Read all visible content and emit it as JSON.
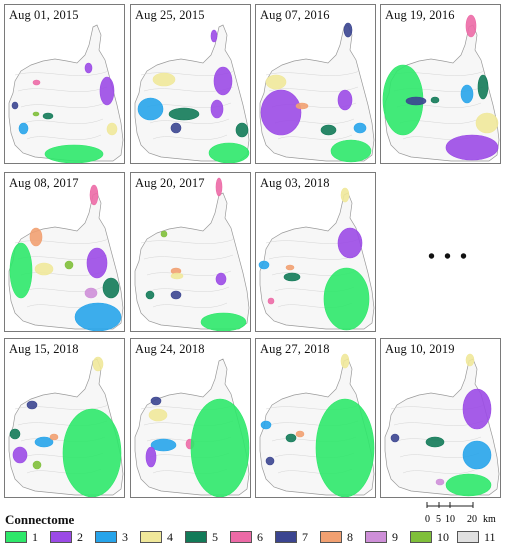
{
  "panels": [
    {
      "date": "Aug 01, 2015",
      "patches": [
        {
          "c": 2,
          "x": 80,
          "y": 58,
          "w": 7,
          "h": 10
        },
        {
          "c": 6,
          "x": 28,
          "y": 75,
          "w": 7,
          "h": 5
        },
        {
          "c": 7,
          "x": 7,
          "y": 97,
          "w": 6,
          "h": 7
        },
        {
          "c": 3,
          "x": 14,
          "y": 118,
          "w": 9,
          "h": 11
        },
        {
          "c": 5,
          "x": 38,
          "y": 108,
          "w": 10,
          "h": 6
        },
        {
          "c": 10,
          "x": 28,
          "y": 107,
          "w": 6,
          "h": 4
        },
        {
          "c": 2,
          "x": 95,
          "y": 72,
          "w": 14,
          "h": 28
        },
        {
          "c": 4,
          "x": 102,
          "y": 118,
          "w": 10,
          "h": 12
        },
        {
          "c": 1,
          "x": 40,
          "y": 140,
          "w": 58,
          "h": 18
        }
      ]
    },
    {
      "date": "Aug 25, 2015",
      "patches": [
        {
          "c": 2,
          "x": 80,
          "y": 25,
          "w": 6,
          "h": 12
        },
        {
          "c": 4,
          "x": 22,
          "y": 68,
          "w": 22,
          "h": 13
        },
        {
          "c": 2,
          "x": 83,
          "y": 62,
          "w": 18,
          "h": 28
        },
        {
          "c": 3,
          "x": 7,
          "y": 93,
          "w": 25,
          "h": 22
        },
        {
          "c": 5,
          "x": 38,
          "y": 103,
          "w": 30,
          "h": 12
        },
        {
          "c": 7,
          "x": 40,
          "y": 118,
          "w": 10,
          "h": 10
        },
        {
          "c": 2,
          "x": 80,
          "y": 95,
          "w": 12,
          "h": 18
        },
        {
          "c": 5,
          "x": 105,
          "y": 118,
          "w": 12,
          "h": 14
        },
        {
          "c": 1,
          "x": 78,
          "y": 138,
          "w": 40,
          "h": 20
        }
      ]
    },
    {
      "date": "Aug 07, 2016",
      "patches": [
        {
          "c": 7,
          "x": 88,
          "y": 18,
          "w": 8,
          "h": 14
        },
        {
          "c": 4,
          "x": 10,
          "y": 70,
          "w": 20,
          "h": 14
        },
        {
          "c": 2,
          "x": 5,
          "y": 85,
          "w": 40,
          "h": 45
        },
        {
          "c": 8,
          "x": 40,
          "y": 98,
          "w": 12,
          "h": 6
        },
        {
          "c": 2,
          "x": 82,
          "y": 85,
          "w": 14,
          "h": 20
        },
        {
          "c": 5,
          "x": 65,
          "y": 120,
          "w": 15,
          "h": 10
        },
        {
          "c": 1,
          "x": 75,
          "y": 135,
          "w": 40,
          "h": 22
        },
        {
          "c": 3,
          "x": 98,
          "y": 118,
          "w": 12,
          "h": 10
        }
      ]
    },
    {
      "date": "Aug 19, 2016",
      "patches": [
        {
          "c": 6,
          "x": 85,
          "y": 10,
          "w": 10,
          "h": 22
        },
        {
          "c": 5,
          "x": 97,
          "y": 70,
          "w": 10,
          "h": 24
        },
        {
          "c": 1,
          "x": 2,
          "y": 60,
          "w": 40,
          "h": 70
        },
        {
          "c": 7,
          "x": 25,
          "y": 92,
          "w": 20,
          "h": 8
        },
        {
          "c": 5,
          "x": 50,
          "y": 92,
          "w": 8,
          "h": 6
        },
        {
          "c": 3,
          "x": 80,
          "y": 80,
          "w": 12,
          "h": 18
        },
        {
          "c": 4,
          "x": 95,
          "y": 108,
          "w": 22,
          "h": 20
        },
        {
          "c": 2,
          "x": 65,
          "y": 130,
          "w": 52,
          "h": 25
        }
      ]
    },
    {
      "date": "Aug 08, 2017",
      "patches": [
        {
          "c": 6,
          "x": 85,
          "y": 12,
          "w": 8,
          "h": 20
        },
        {
          "c": 8,
          "x": 25,
          "y": 55,
          "w": 12,
          "h": 18
        },
        {
          "c": 1,
          "x": 5,
          "y": 70,
          "w": 22,
          "h": 55
        },
        {
          "c": 4,
          "x": 30,
          "y": 90,
          "w": 18,
          "h": 12
        },
        {
          "c": 10,
          "x": 60,
          "y": 88,
          "w": 8,
          "h": 8
        },
        {
          "c": 2,
          "x": 82,
          "y": 75,
          "w": 20,
          "h": 30
        },
        {
          "c": 5,
          "x": 98,
          "y": 105,
          "w": 16,
          "h": 20
        },
        {
          "c": 9,
          "x": 80,
          "y": 115,
          "w": 12,
          "h": 10
        },
        {
          "c": 3,
          "x": 70,
          "y": 130,
          "w": 46,
          "h": 28
        }
      ]
    },
    {
      "date": "Aug 20, 2017",
      "patches": [
        {
          "c": 6,
          "x": 85,
          "y": 5,
          "w": 6,
          "h": 18
        },
        {
          "c": 10,
          "x": 30,
          "y": 58,
          "w": 6,
          "h": 6
        },
        {
          "c": 8,
          "x": 40,
          "y": 95,
          "w": 10,
          "h": 6
        },
        {
          "c": 4,
          "x": 40,
          "y": 100,
          "w": 12,
          "h": 6
        },
        {
          "c": 7,
          "x": 40,
          "y": 118,
          "w": 10,
          "h": 8
        },
        {
          "c": 5,
          "x": 15,
          "y": 118,
          "w": 8,
          "h": 8
        },
        {
          "c": 2,
          "x": 85,
          "y": 100,
          "w": 10,
          "h": 12
        },
        {
          "c": 1,
          "x": 70,
          "y": 140,
          "w": 45,
          "h": 18
        }
      ]
    },
    {
      "date": "Aug 03, 2018",
      "patches": [
        {
          "c": 4,
          "x": 85,
          "y": 15,
          "w": 8,
          "h": 14
        },
        {
          "c": 2,
          "x": 82,
          "y": 55,
          "w": 24,
          "h": 30
        },
        {
          "c": 3,
          "x": 3,
          "y": 88,
          "w": 10,
          "h": 8
        },
        {
          "c": 8,
          "x": 30,
          "y": 92,
          "w": 8,
          "h": 5
        },
        {
          "c": 5,
          "x": 28,
          "y": 100,
          "w": 16,
          "h": 8
        },
        {
          "c": 6,
          "x": 12,
          "y": 125,
          "w": 6,
          "h": 6
        },
        {
          "c": 1,
          "x": 68,
          "y": 95,
          "w": 45,
          "h": 62
        }
      ]
    },
    {
      "date": "Aug 15, 2018",
      "patches": [
        {
          "c": 4,
          "x": 88,
          "y": 18,
          "w": 10,
          "h": 14
        },
        {
          "c": 7,
          "x": 22,
          "y": 62,
          "w": 10,
          "h": 8
        },
        {
          "c": 5,
          "x": 5,
          "y": 90,
          "w": 10,
          "h": 10
        },
        {
          "c": 2,
          "x": 8,
          "y": 108,
          "w": 14,
          "h": 16
        },
        {
          "c": 3,
          "x": 30,
          "y": 98,
          "w": 18,
          "h": 10
        },
        {
          "c": 8,
          "x": 45,
          "y": 95,
          "w": 8,
          "h": 6
        },
        {
          "c": 10,
          "x": 28,
          "y": 122,
          "w": 8,
          "h": 8
        },
        {
          "c": 1,
          "x": 58,
          "y": 70,
          "w": 58,
          "h": 88
        }
      ]
    },
    {
      "date": "Aug 24, 2018",
      "patches": [
        {
          "c": 7,
          "x": 20,
          "y": 58,
          "w": 10,
          "h": 8
        },
        {
          "c": 4,
          "x": 18,
          "y": 70,
          "w": 18,
          "h": 12
        },
        {
          "c": 3,
          "x": 20,
          "y": 100,
          "w": 25,
          "h": 12
        },
        {
          "c": 2,
          "x": 15,
          "y": 108,
          "w": 10,
          "h": 20
        },
        {
          "c": 6,
          "x": 55,
          "y": 100,
          "w": 8,
          "h": 10
        },
        {
          "c": 1,
          "x": 60,
          "y": 60,
          "w": 58,
          "h": 98
        }
      ]
    },
    {
      "date": "Aug 27, 2018",
      "patches": [
        {
          "c": 3,
          "x": 5,
          "y": 82,
          "w": 10,
          "h": 8
        },
        {
          "c": 5,
          "x": 30,
          "y": 95,
          "w": 10,
          "h": 8
        },
        {
          "c": 8,
          "x": 40,
          "y": 92,
          "w": 8,
          "h": 6
        },
        {
          "c": 7,
          "x": 10,
          "y": 118,
          "w": 8,
          "h": 8
        },
        {
          "c": 4,
          "x": 85,
          "y": 15,
          "w": 8,
          "h": 14
        },
        {
          "c": 1,
          "x": 60,
          "y": 60,
          "w": 58,
          "h": 98
        }
      ]
    },
    {
      "date": "Aug 10, 2019",
      "patches": [
        {
          "c": 4,
          "x": 85,
          "y": 15,
          "w": 8,
          "h": 12
        },
        {
          "c": 2,
          "x": 82,
          "y": 50,
          "w": 28,
          "h": 40
        },
        {
          "c": 7,
          "x": 10,
          "y": 95,
          "w": 8,
          "h": 8
        },
        {
          "c": 5,
          "x": 45,
          "y": 98,
          "w": 18,
          "h": 10
        },
        {
          "c": 3,
          "x": 82,
          "y": 102,
          "w": 28,
          "h": 28
        },
        {
          "c": 9,
          "x": 55,
          "y": 140,
          "w": 8,
          "h": 6
        },
        {
          "c": 1,
          "x": 65,
          "y": 135,
          "w": 45,
          "h": 22
        }
      ]
    }
  ],
  "ellipsis": "• • •",
  "legend": {
    "title": "Connectome",
    "items": [
      {
        "label": "1",
        "color": "#2ee86a"
      },
      {
        "label": "2",
        "color": "#9b4ae6"
      },
      {
        "label": "3",
        "color": "#27a4ea"
      },
      {
        "label": "4",
        "color": "#f0e89a"
      },
      {
        "label": "5",
        "color": "#127a58"
      },
      {
        "label": "6",
        "color": "#ec6aa6"
      },
      {
        "label": "7",
        "color": "#3b4590"
      },
      {
        "label": "8",
        "color": "#f1a071"
      },
      {
        "label": "9",
        "color": "#ce8fd8"
      },
      {
        "label": "10",
        "color": "#7fbf3a"
      },
      {
        "label": "11",
        "color": "#e0e0e0"
      }
    ]
  },
  "scale": {
    "ticks": [
      "0",
      "5",
      "10",
      "20"
    ],
    "unit": "km"
  }
}
